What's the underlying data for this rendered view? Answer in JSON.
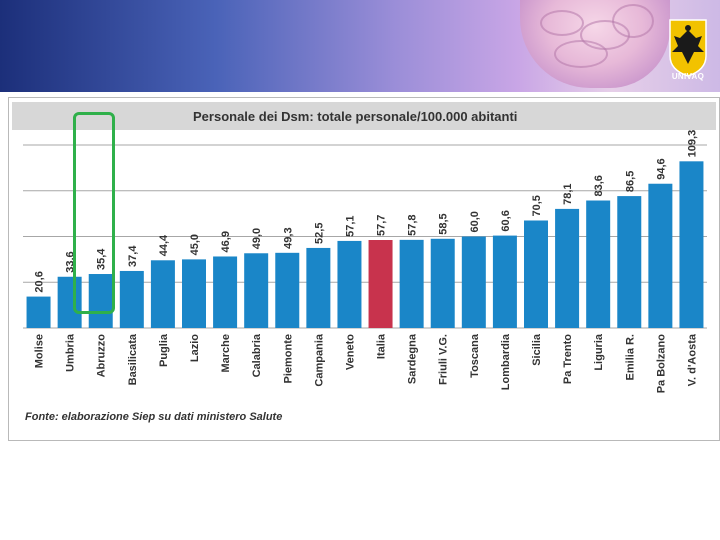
{
  "header": {
    "logo_text": "UNIVAQ"
  },
  "colors": {
    "bar": "#1a86c8",
    "highlight_bar": "#c8334d",
    "highlight_box": "#2fb04a",
    "banner_dark": "#1c2f7a"
  },
  "icons": {
    "brain": "brain-image",
    "logo": "univaq-eagle-crest"
  },
  "highlighted_region": "Abruzzo",
  "chart_data": {
    "type": "bar",
    "title": "Personale dei Dsm: totale personale/100.000 abitanti",
    "categories": [
      "Molise",
      "Umbria",
      "Abruzzo",
      "Basilicata",
      "Puglia",
      "Lazio",
      "Marche",
      "Calabria",
      "Piemonte",
      "Campania",
      "Veneto",
      "Italia",
      "Sardegna",
      "Friuli V.G.",
      "Toscana",
      "Lombardia",
      "Sicilia",
      "Pa Trento",
      "Liguria",
      "Emilia R.",
      "Pa Bolzano",
      "V. d'Aosta"
    ],
    "values": [
      20.6,
      33.6,
      35.4,
      37.4,
      44.4,
      45.0,
      46.9,
      49.0,
      49.3,
      52.5,
      57.1,
      57.7,
      57.8,
      58.5,
      60.0,
      60.6,
      70.5,
      78.1,
      83.6,
      86.5,
      94.6,
      109.3
    ],
    "value_labels": [
      "20,6",
      "33,6",
      "35,4",
      "37,4",
      "44,4",
      "45,0",
      "46,9",
      "49,0",
      "49,3",
      "52,5",
      "57,1",
      "57,7",
      "57,8",
      "58,5",
      "60,0",
      "60,6",
      "70,5",
      "78,1",
      "83,6",
      "86,5",
      "94,6",
      "109,3"
    ],
    "highlight_category": "Italia",
    "ylim": [
      0,
      120
    ],
    "gridlines": [
      0,
      30,
      60,
      90,
      120
    ],
    "source": "Fonte: elaborazione Siep su dati ministero Salute"
  }
}
